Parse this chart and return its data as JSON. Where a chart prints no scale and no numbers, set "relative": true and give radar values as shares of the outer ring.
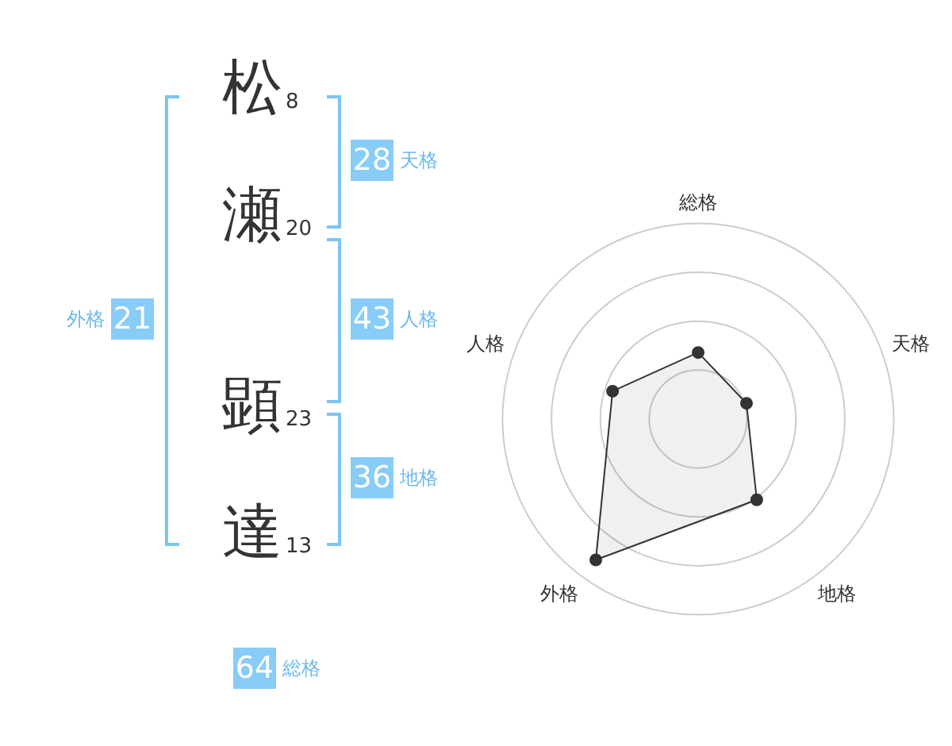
{
  "chart_data": [
    {
      "type": "other",
      "categories": [
        "松",
        "瀬",
        "顕",
        "達"
      ],
      "values": [
        8,
        20,
        23,
        13
      ],
      "data_labels": true,
      "annotations": [
        "28",
        "天格",
        "43",
        "人格",
        "36",
        "地格",
        "21",
        "外格",
        "64",
        "総格"
      ]
    },
    {
      "type": "radar",
      "categories": [
        "総格",
        "天格",
        "地格",
        "外格",
        "人格"
      ],
      "relative": true,
      "marker": "circle",
      "grid": true,
      "series": [
        {
          "color": "#333333",
          "values": [
            0.34,
            0.26,
            0.51,
            0.89,
            0.46
          ]
        }
      ]
    }
  ]
}
